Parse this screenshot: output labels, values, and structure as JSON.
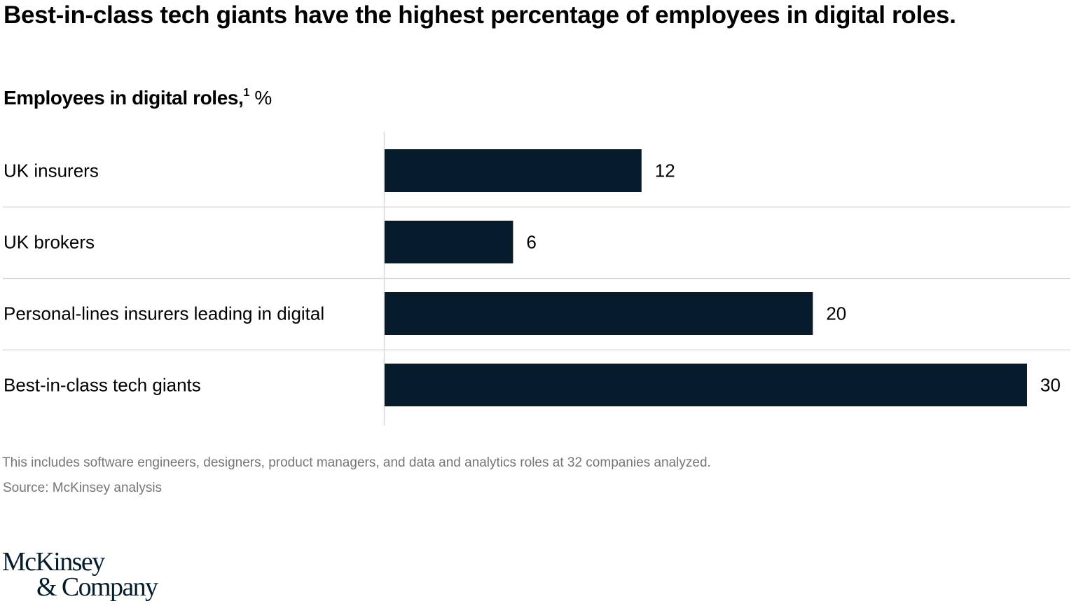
{
  "title": "Best-in-class tech giants have the highest percentage of employees in digital roles.",
  "subtitle": {
    "text": "Employees in digital roles,",
    "footnote_marker": "1",
    "unit": "%"
  },
  "footnote": "This includes software engineers, designers, product managers, and data and analytics roles at 32 companies analyzed.",
  "source": "Source: McKinsey analysis",
  "logo": {
    "line1": "McKinsey",
    "line2": "& Company"
  },
  "colors": {
    "bar": "#061c2c",
    "gridline": "#d9d9d9",
    "footnote_text": "#757575"
  },
  "chart_data": {
    "type": "bar",
    "orientation": "horizontal",
    "title": "Employees in digital roles, %",
    "xlabel": "",
    "ylabel": "",
    "categories": [
      "UK insurers",
      "UK brokers",
      "Personal-lines insurers leading in digital",
      "Best-in-class tech giants"
    ],
    "values": [
      12,
      6,
      20,
      30
    ],
    "xlim": [
      0,
      30
    ],
    "grid": false,
    "legend": "none",
    "data_labels": true
  }
}
